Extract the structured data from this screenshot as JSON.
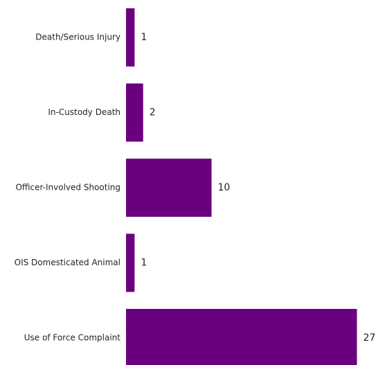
{
  "chart_data": {
    "type": "bar",
    "orientation": "horizontal",
    "categories": [
      "Death/Serious Injury",
      "In-Custody Death",
      "Officer-Involved Shooting",
      "OIS Domesticated Animal",
      "Use of Force Complaint"
    ],
    "values": [
      1,
      2,
      10,
      1,
      27
    ],
    "data_labels": [
      "1",
      "2",
      "10",
      "1",
      "27"
    ],
    "bar_color": "#6a0080",
    "grid": false,
    "legend": "none"
  }
}
